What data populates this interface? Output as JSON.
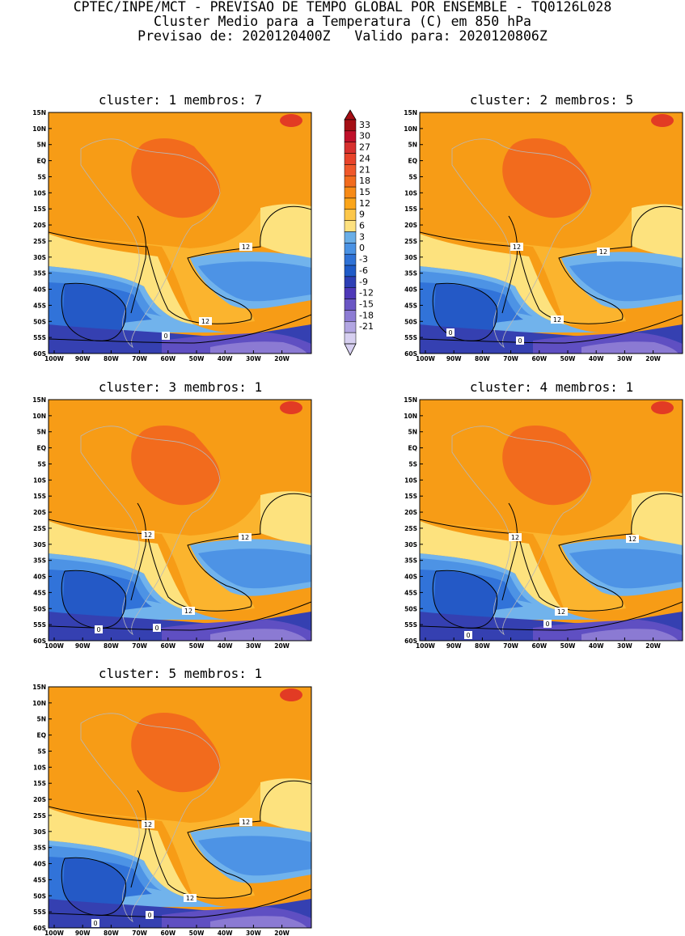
{
  "header": {
    "line1": "CPTEC/INPE/MCT - PREVISAO DE TEMPO GLOBAL POR ENSEMBLE - TQ0126L028",
    "line2": "Cluster Medio para a Temperatura (C) em 850 hPa",
    "line3": "Previsao de: 2020120400Z   Valido para: 2020120806Z"
  },
  "axes": {
    "lat_labels": [
      "15N",
      "10N",
      "5N",
      "EQ",
      "5S",
      "10S",
      "15S",
      "20S",
      "25S",
      "30S",
      "35S",
      "40S",
      "45S",
      "50S",
      "55S",
      "60S"
    ],
    "lon_labels": [
      "100W",
      "90W",
      "80W",
      "70W",
      "60W",
      "50W",
      "40W",
      "30W",
      "20W"
    ]
  },
  "colorbar": {
    "labels": [
      "33",
      "30",
      "27",
      "24",
      "21",
      "18",
      "15",
      "12",
      "9",
      "6",
      "3",
      "0",
      "-3",
      "-6",
      "-9",
      "-12",
      "-15",
      "-18",
      "-21"
    ],
    "colors": [
      "#a50f15",
      "#c0102a",
      "#d7302e",
      "#e8432a",
      "#f0582a",
      "#f26b1d",
      "#f78a16",
      "#fba51a",
      "#fcc74a",
      "#fde180",
      "#6aaee6",
      "#4a92e4",
      "#2f72d6",
      "#1f5bc8",
      "#2d3fb5",
      "#4e38b8",
      "#6a56c4",
      "#8d7cd4",
      "#b2a6e2",
      "#d6cff0"
    ]
  },
  "panels": [
    {
      "title": "cluster: 1   membros: 7",
      "cluster": 1,
      "membros": 7,
      "contour_labels": [
        "12",
        "12",
        "0"
      ]
    },
    {
      "title": "cluster: 2   membros: 5",
      "cluster": 2,
      "membros": 5,
      "contour_labels": [
        "12",
        "12",
        "12",
        "0",
        "0"
      ]
    },
    {
      "title": "cluster: 3   membros: 1",
      "cluster": 3,
      "membros": 1,
      "contour_labels": [
        "12",
        "12",
        "12",
        "0",
        "0"
      ]
    },
    {
      "title": "cluster: 4   membros: 1",
      "cluster": 4,
      "membros": 1,
      "contour_labels": [
        "12",
        "12",
        "12",
        "0",
        "0"
      ]
    },
    {
      "title": "cluster: 5   membros: 1",
      "cluster": 5,
      "membros": 1,
      "contour_labels": [
        "12",
        "12",
        "12",
        "0",
        "0"
      ]
    }
  ]
}
